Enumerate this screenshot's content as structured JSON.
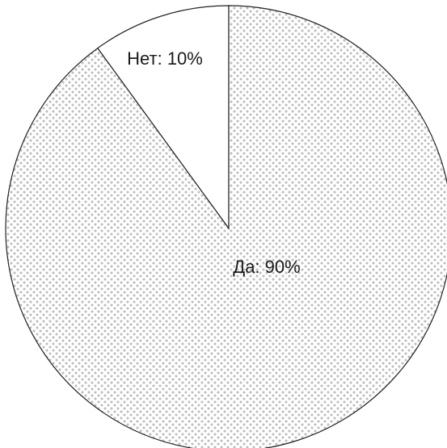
{
  "chart_data": {
    "type": "pie",
    "title": "",
    "slices": [
      {
        "label": "Нет",
        "value": 10,
        "display": "Нет: 10%",
        "fill": "#ffffff",
        "pattern": "none"
      },
      {
        "label": "Да",
        "value": 90,
        "display": "Да: 90%",
        "fill": "#c8c8c8",
        "pattern": "dots"
      }
    ],
    "colors": {
      "outline": "#222222",
      "dot": "#c0c0c0",
      "background": "#ffffff"
    },
    "start": "top",
    "direction": "counterclockwise-first-slice",
    "legend": "none"
  }
}
